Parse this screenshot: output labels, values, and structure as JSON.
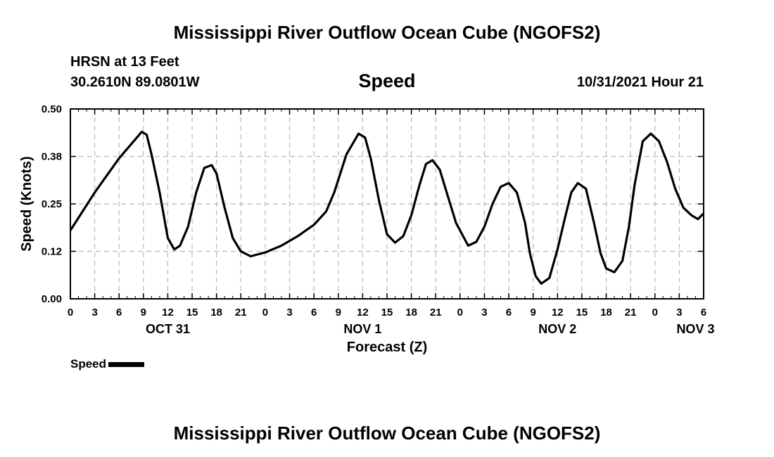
{
  "title": "Mississippi River Outflow Ocean Cube (NGOFS2)",
  "station": "HRSN at 13 Feet",
  "coords": "30.2610N  89.0801W",
  "variable": "Speed",
  "timestamp": "10/31/2021 Hour 21",
  "footer_title": "Mississippi River Outflow Ocean Cube (NGOFS2)",
  "legend": {
    "label": "Speed",
    "color": "#000000"
  },
  "chart_data": {
    "type": "line",
    "title": "Speed",
    "xlabel": "Forecast (Z)",
    "ylabel": "Speed (Knots)",
    "xlim": [
      0,
      78
    ],
    "ylim": [
      0,
      0.5
    ],
    "y_ticks": [
      0.0,
      0.125,
      0.25,
      0.375,
      0.5
    ],
    "y_tick_labels": [
      "0.00",
      "0.12",
      "0.25",
      "0.38",
      "0.50"
    ],
    "x_ticks": [
      0,
      3,
      6,
      9,
      12,
      15,
      18,
      21,
      24,
      27,
      30,
      33,
      36,
      39,
      42,
      45,
      48,
      51,
      54,
      57,
      60,
      63,
      66,
      69,
      72,
      75,
      78
    ],
    "x_tick_labels": [
      "0",
      "3",
      "6",
      "9",
      "12",
      "15",
      "18",
      "21",
      "0",
      "3",
      "6",
      "9",
      "12",
      "15",
      "18",
      "21",
      "0",
      "3",
      "6",
      "9",
      "12",
      "15",
      "18",
      "21",
      "0",
      "3",
      "6"
    ],
    "day_labels": [
      {
        "label": "OCT 31",
        "x": 12
      },
      {
        "label": "NOV 1",
        "x": 36
      },
      {
        "label": "NOV 2",
        "x": 60
      },
      {
        "label": "NOV 3",
        "x": 77
      }
    ],
    "grid": true,
    "series": [
      {
        "name": "Speed",
        "x": [
          0,
          3,
          6,
          8.8,
          9.4,
          10,
          11,
          12,
          12.8,
          13.5,
          14.5,
          15.5,
          16.5,
          17.4,
          18,
          19,
          20,
          21,
          22.2,
          24,
          26,
          28,
          30,
          31.5,
          32.5,
          34,
          35.5,
          36.3,
          37,
          38,
          39,
          40,
          41,
          42,
          43,
          43.8,
          44.6,
          45.5,
          46.5,
          47.5,
          48.5,
          49,
          50,
          51,
          52,
          53,
          54,
          55,
          56,
          56.6,
          57.3,
          58,
          59,
          60,
          61,
          61.7,
          62.5,
          63.5,
          64.5,
          65.3,
          66,
          67,
          68,
          68.8,
          69.5,
          70.5,
          71.5,
          72.5,
          73.5,
          74.5,
          75.5,
          76.5,
          77.3,
          78
        ],
        "values": [
          0.18,
          0.28,
          0.37,
          0.44,
          0.432,
          0.38,
          0.28,
          0.16,
          0.13,
          0.14,
          0.19,
          0.28,
          0.345,
          0.352,
          0.33,
          0.24,
          0.16,
          0.125,
          0.112,
          0.122,
          0.14,
          0.165,
          0.195,
          0.23,
          0.28,
          0.38,
          0.435,
          0.425,
          0.37,
          0.26,
          0.17,
          0.148,
          0.165,
          0.22,
          0.3,
          0.355,
          0.365,
          0.34,
          0.27,
          0.2,
          0.16,
          0.14,
          0.15,
          0.19,
          0.25,
          0.295,
          0.305,
          0.28,
          0.2,
          0.12,
          0.06,
          0.04,
          0.055,
          0.13,
          0.22,
          0.28,
          0.305,
          0.29,
          0.2,
          0.12,
          0.08,
          0.07,
          0.1,
          0.19,
          0.3,
          0.415,
          0.435,
          0.415,
          0.36,
          0.29,
          0.24,
          0.22,
          0.21,
          0.225
        ]
      }
    ]
  }
}
